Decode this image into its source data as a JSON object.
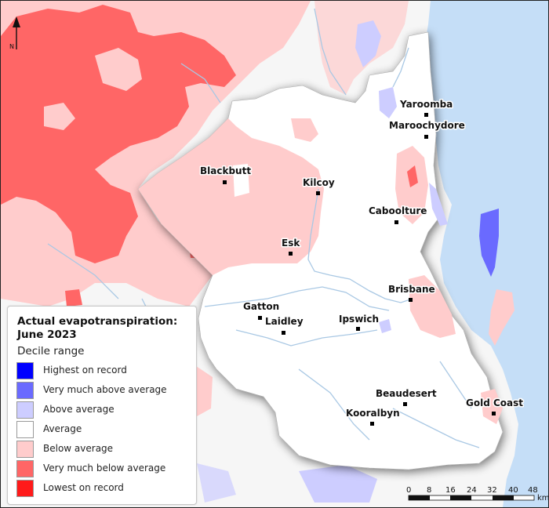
{
  "map": {
    "title_line1": "Actual evapotranspiration:",
    "title_line2": "June 2023",
    "north_label": "N",
    "towns": [
      {
        "name": "Yaroomba"
      },
      {
        "name": "Maroochydore"
      },
      {
        "name": "Blackbutt"
      },
      {
        "name": "Kilcoy"
      },
      {
        "name": "Caboolture"
      },
      {
        "name": "Esk"
      },
      {
        "name": "Brisbane"
      },
      {
        "name": "Gatton"
      },
      {
        "name": "Laidley"
      },
      {
        "name": "Ipswich"
      },
      {
        "name": "Beaudesert"
      },
      {
        "name": "Gold Coast"
      },
      {
        "name": "Kooralbyn"
      }
    ]
  },
  "legend": {
    "subtitle": "Decile range",
    "items": [
      {
        "label": "Highest on record",
        "color": "#0000ff"
      },
      {
        "label": "Very much above average",
        "color": "#6a6aff"
      },
      {
        "label": "Above average",
        "color": "#cdcdff"
      },
      {
        "label": "Average",
        "color": "#ffffff"
      },
      {
        "label": "Below average",
        "color": "#ffcccc"
      },
      {
        "label": "Very much below average",
        "color": "#ff6666"
      },
      {
        "label": "Lowest on record",
        "color": "#ff1a1a"
      }
    ]
  },
  "scale_bar": {
    "ticks": [
      "0",
      "8",
      "16",
      "24",
      "32",
      "40",
      "48"
    ],
    "unit": "km"
  }
}
